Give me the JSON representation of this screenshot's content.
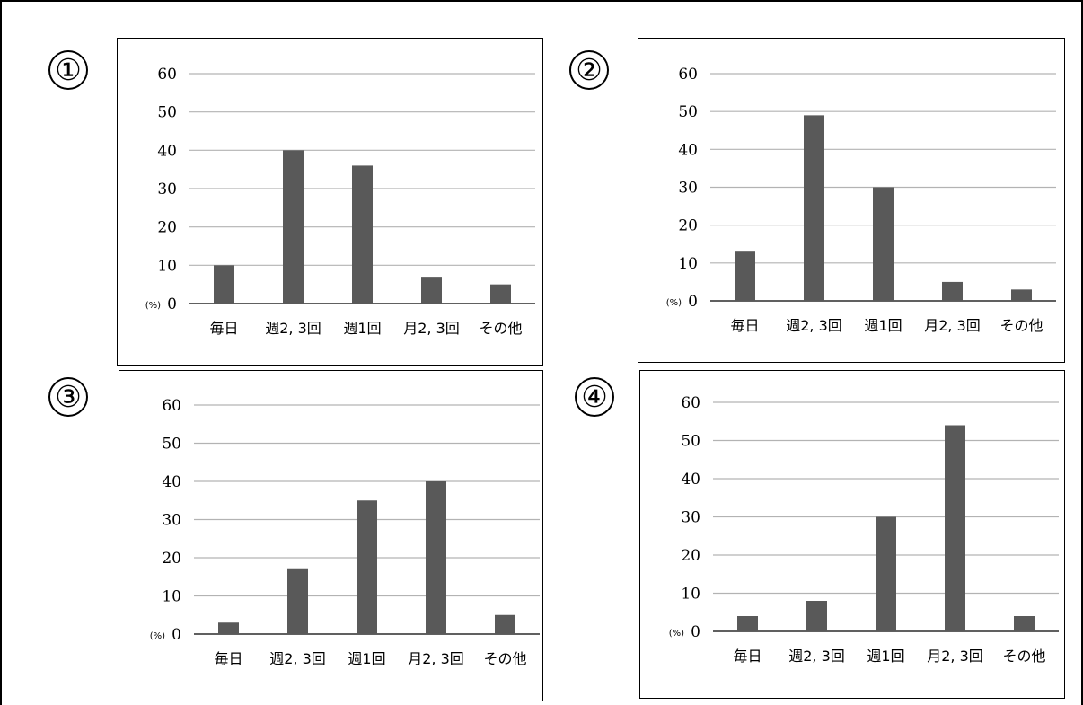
{
  "charts": [
    {
      "marker": "①",
      "chart_data": {
        "type": "bar",
        "categories": [
          "毎日",
          "週2, 3回",
          "週1回",
          "月2, 3回",
          "その他"
        ],
        "values": [
          10,
          40,
          36,
          7,
          5
        ],
        "ylabel": "(%)",
        "ylim": [
          0,
          60
        ],
        "yticks": [
          0,
          10,
          20,
          30,
          40,
          50,
          60
        ],
        "grid": true
      }
    },
    {
      "marker": "②",
      "chart_data": {
        "type": "bar",
        "categories": [
          "毎日",
          "週2, 3回",
          "週1回",
          "月2, 3回",
          "その他"
        ],
        "values": [
          13,
          49,
          30,
          5,
          3
        ],
        "ylabel": "(%)",
        "ylim": [
          0,
          60
        ],
        "yticks": [
          0,
          10,
          20,
          30,
          40,
          50,
          60
        ],
        "grid": true
      }
    },
    {
      "marker": "③",
      "chart_data": {
        "type": "bar",
        "categories": [
          "毎日",
          "週2, 3回",
          "週1回",
          "月2, 3回",
          "その他"
        ],
        "values": [
          3,
          17,
          35,
          40,
          5
        ],
        "ylabel": "(%)",
        "ylim": [
          0,
          60
        ],
        "yticks": [
          0,
          10,
          20,
          30,
          40,
          50,
          60
        ],
        "grid": true
      }
    },
    {
      "marker": "④",
      "chart_data": {
        "type": "bar",
        "categories": [
          "毎日",
          "週2, 3回",
          "週1回",
          "月2, 3回",
          "その他"
        ],
        "values": [
          4,
          8,
          30,
          54,
          4
        ],
        "ylabel": "(%)",
        "ylim": [
          0,
          60
        ],
        "yticks": [
          0,
          10,
          20,
          30,
          40,
          50,
          60
        ],
        "grid": true
      }
    }
  ],
  "colors": {
    "bar": "#595959",
    "grid": "#b3b3b3",
    "axis": "#000000",
    "text": "#000000"
  }
}
